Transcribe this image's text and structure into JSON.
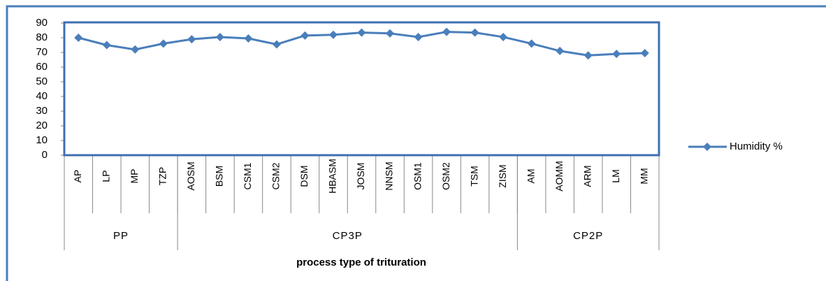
{
  "chart_data": {
    "type": "line",
    "x_axis_label": "process type of trituration",
    "categories": [
      "AP",
      "LP",
      "MP",
      "TZP",
      "AOSM",
      "BSM",
      "CSM1",
      "CSM2",
      "DSM",
      "HBASM",
      "JOSM",
      "NNSM",
      "OSM1",
      "OSM2",
      "TSM",
      "ZISM",
      "AM",
      "AOMM",
      "ARM",
      "LM",
      "MM"
    ],
    "groups": [
      {
        "name": "PP",
        "span": 4
      },
      {
        "name": "CP3P",
        "span": 12
      },
      {
        "name": "CP2P",
        "span": 5
      }
    ],
    "series": [
      {
        "name": "Humidity %",
        "color": "#4a7ebb",
        "values": [
          80,
          75,
          72,
          76,
          79,
          80.5,
          79.5,
          75.5,
          81.5,
          82,
          83.5,
          83,
          80.5,
          84,
          83.5,
          80.5,
          76,
          71,
          68,
          69,
          69.5
        ]
      }
    ],
    "ylim": [
      0,
      90
    ],
    "yticks": [
      0,
      10,
      20,
      30,
      40,
      50,
      60,
      70,
      80,
      90
    ],
    "grid": false,
    "legend": "right"
  }
}
